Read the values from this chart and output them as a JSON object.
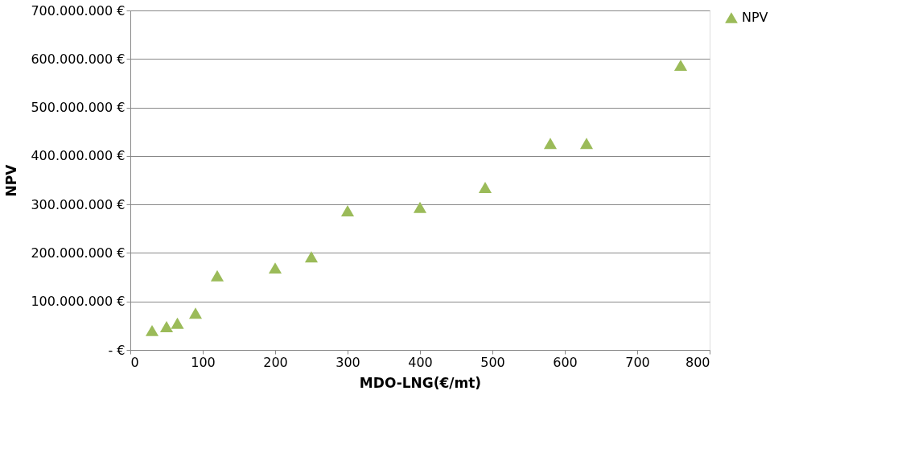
{
  "chart_data": {
    "type": "scatter",
    "xlabel": "MDO-LNG(€/mt)",
    "ylabel": "NPV",
    "x": [
      30,
      50,
      65,
      90,
      120,
      200,
      250,
      300,
      400,
      490,
      580,
      630,
      760
    ],
    "series": [
      {
        "name": "NPV",
        "color": "#9bbb59",
        "values": [
          40000000,
          48000000,
          55000000,
          76000000,
          153000000,
          169000000,
          192000000,
          287000000,
          294000000,
          335000000,
          426000000,
          426000000,
          587000000
        ]
      }
    ],
    "xlim": [
      0,
      800
    ],
    "xticks": [
      0,
      100,
      200,
      300,
      400,
      500,
      600,
      700,
      800
    ],
    "ylim": [
      0,
      700000000
    ],
    "yticks": [
      {
        "value": 0,
        "label": "-   €"
      },
      {
        "value": 100000000,
        "label": "100.000.000 €"
      },
      {
        "value": 200000000,
        "label": "200.000.000 €"
      },
      {
        "value": 300000000,
        "label": "300.000.000 €"
      },
      {
        "value": 400000000,
        "label": "400.000.000 €"
      },
      {
        "value": 500000000,
        "label": "500.000.000 €"
      },
      {
        "value": 600000000,
        "label": "600.000.000 €"
      },
      {
        "value": 700000000,
        "label": "700.000.000 €"
      }
    ],
    "grid": "y",
    "legend": "right",
    "marker": "triangle"
  }
}
